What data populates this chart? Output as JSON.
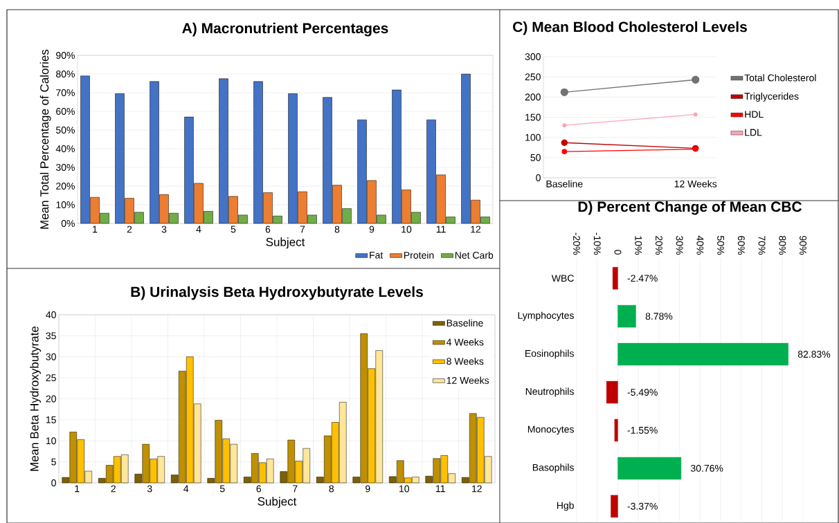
{
  "chart_data": [
    {
      "type": "bar",
      "title": "A) Macronutrient Percentages",
      "xlabel": "Subject",
      "ylabel": "Mean Total Percentage of Calories",
      "categories": [
        "1",
        "2",
        "3",
        "4",
        "5",
        "6",
        "7",
        "8",
        "9",
        "10",
        "11",
        "12"
      ],
      "series": [
        {
          "name": "Fat",
          "color": "#4472c4",
          "values": [
            79,
            69.5,
            76,
            57,
            77.5,
            76,
            69.5,
            67.5,
            55.5,
            71.5,
            55.5,
            80
          ]
        },
        {
          "name": "Protein",
          "color": "#ed7d31",
          "values": [
            14,
            13.5,
            15.5,
            21.5,
            14.5,
            16.5,
            17,
            20.5,
            23,
            18,
            26,
            12.5
          ]
        },
        {
          "name": "Net Carb",
          "color": "#70ad47",
          "values": [
            5.5,
            6,
            5.5,
            6.5,
            4.5,
            4,
            4.5,
            8,
            4.5,
            6,
            3.5,
            3.5
          ]
        }
      ],
      "ylim": [
        0,
        90
      ],
      "yticks": [
        {
          "value": 0,
          "label": "0%"
        },
        {
          "value": 10,
          "label": "10%"
        },
        {
          "value": 20,
          "label": "20%"
        },
        {
          "value": 30,
          "label": "30%"
        },
        {
          "value": 40,
          "label": "40%"
        },
        {
          "value": 50,
          "label": "50%"
        },
        {
          "value": 60,
          "label": "60%"
        },
        {
          "value": 70,
          "label": "70%"
        },
        {
          "value": 80,
          "label": "80%"
        },
        {
          "value": 90,
          "label": "90%"
        }
      ],
      "grid": "y",
      "legend": "bottom right"
    },
    {
      "type": "bar",
      "title": "B) Urinalysis Beta Hydroxybutyrate Levels",
      "xlabel": "Subject",
      "ylabel": "Mean Beta Hydroxybutyrate",
      "categories": [
        "1",
        "2",
        "3",
        "4",
        "5",
        "6",
        "7",
        "8",
        "9",
        "10",
        "11",
        "12"
      ],
      "series": [
        {
          "name": "Baseline",
          "color": "#7f6000",
          "values": [
            1.3,
            1.1,
            2.1,
            1.9,
            1.1,
            1.4,
            2.7,
            1.4,
            1.4,
            1.5,
            1.6,
            1.3
          ]
        },
        {
          "name": "4 Weeks",
          "color": "#bf9000",
          "values": [
            12.1,
            4.2,
            9.2,
            26.6,
            14.9,
            7.0,
            10.2,
            11.2,
            35.5,
            5.3,
            5.8,
            16.5
          ]
        },
        {
          "name": "8 Weeks",
          "color": "#ffc000",
          "values": [
            10.3,
            6.3,
            5.7,
            30,
            10.5,
            4.8,
            5.2,
            14.4,
            27.2,
            1.2,
            6.5,
            15.6
          ]
        },
        {
          "name": "12 Weeks",
          "color": "#ffe699",
          "values": [
            2.8,
            6.7,
            6.3,
            18.8,
            9.2,
            5.7,
            8.2,
            19.2,
            31.5,
            1.4,
            2.2,
            6.3
          ]
        }
      ],
      "ylim": [
        0,
        40
      ],
      "yticks": [
        0,
        5,
        10,
        15,
        20,
        25,
        30,
        35,
        40
      ],
      "grid": true,
      "legend": "top right"
    },
    {
      "type": "line",
      "title": "C) Mean Blood Cholesterol Levels",
      "categories": [
        "Baseline",
        "12 Weeks"
      ],
      "series": [
        {
          "name": "Total Cholesterol",
          "color": "#767171",
          "values": [
            212,
            243
          ]
        },
        {
          "name": "Triglycerides",
          "color": "#c00000",
          "values": [
            87,
            73
          ]
        },
        {
          "name": "HDL",
          "color": "#ff0000",
          "values": [
            65,
            71
          ]
        },
        {
          "name": "LDL",
          "color": "#ffa3b5",
          "values": [
            130,
            157
          ]
        }
      ],
      "ylim": [
        0,
        300
      ],
      "yticks": [
        0,
        50,
        100,
        150,
        200,
        250,
        300
      ],
      "grid": "y",
      "legend": "right",
      "marker": "circle"
    },
    {
      "type": "bar",
      "orientation": "horizontal",
      "title": "D) Percent Change of Mean CBC",
      "categories": [
        "WBC",
        "Lymphocytes",
        "Eosinophils",
        "Neutrophils",
        "Monocytes",
        "Basophils",
        "Hgb"
      ],
      "values": [
        -2.47,
        8.78,
        82.83,
        -5.49,
        -1.55,
        30.76,
        -3.37
      ],
      "colors": [
        "#c00000",
        "#00b050",
        "#00b050",
        "#c00000",
        "#c00000",
        "#00b050",
        "#c00000"
      ],
      "value_labels": [
        "-2.47%",
        "8.78%",
        "82.83%",
        "-5.49%",
        "-1.55%",
        "30.76%",
        "-3.37%"
      ],
      "xlim": [
        -20,
        90
      ],
      "xticks": [
        {
          "value": -20,
          "label": "-20%"
        },
        {
          "value": -10,
          "label": "-10%"
        },
        0,
        {
          "value": 10,
          "label": "10%"
        },
        {
          "value": 20,
          "label": "20%"
        },
        {
          "value": 30,
          "label": "30%"
        },
        {
          "value": 40,
          "label": "40%"
        },
        {
          "value": 50,
          "label": "50%"
        },
        {
          "value": 60,
          "label": "60%"
        },
        {
          "value": 70,
          "label": "70%"
        },
        {
          "value": 80,
          "label": "80%"
        },
        {
          "value": 90,
          "label": "90%"
        }
      ],
      "grid": "x"
    }
  ]
}
